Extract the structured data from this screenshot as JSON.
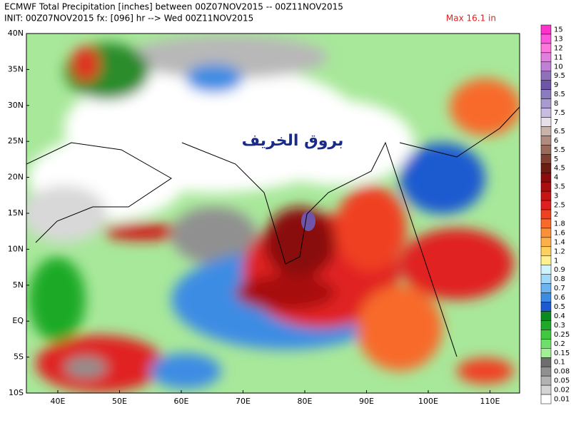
{
  "header": {
    "title_line1": "ECMWF Total Precipitation [inches] between 00Z07NOV2015 -- 00Z11NOV2015",
    "title_line2": "INIT: 00Z07NOV2015 fx: [096] hr --> Wed 00Z11NOV2015",
    "max": "Max 16.1 in"
  },
  "map": {
    "lat_labels": [
      "40N",
      "35N",
      "30N",
      "25N",
      "20N",
      "15N",
      "10N",
      "5N",
      "EQ",
      "5S",
      "10S"
    ],
    "lon_labels": [
      "40E",
      "50E",
      "60E",
      "70E",
      "80E",
      "90E",
      "100E",
      "110E"
    ],
    "watermark": "بروق الخريف"
  },
  "colorbar": [
    {
      "label": "15",
      "color": "#ff33cc"
    },
    {
      "label": "13",
      "color": "#ff55dd"
    },
    {
      "label": "12",
      "color": "#ff77dd"
    },
    {
      "label": "11",
      "color": "#e07fe0"
    },
    {
      "label": "10",
      "color": "#c080d8"
    },
    {
      "label": "9.5",
      "color": "#9070b8"
    },
    {
      "label": "9",
      "color": "#6e55a8"
    },
    {
      "label": "8.5",
      "color": "#8b7cc0"
    },
    {
      "label": "8",
      "color": "#a99ad0"
    },
    {
      "label": "7.5",
      "color": "#c8bde0"
    },
    {
      "label": "7",
      "color": "#e8e0e8"
    },
    {
      "label": "6.5",
      "color": "#c9b3ab"
    },
    {
      "label": "6",
      "color": "#b08b80"
    },
    {
      "label": "5.5",
      "color": "#9a6a5c"
    },
    {
      "label": "5",
      "color": "#7d4032"
    },
    {
      "label": "4.5",
      "color": "#6b1f14"
    },
    {
      "label": "4",
      "color": "#8a0c0c"
    },
    {
      "label": "3.5",
      "color": "#a81010"
    },
    {
      "label": "3",
      "color": "#c81414"
    },
    {
      "label": "2.5",
      "color": "#e02020"
    },
    {
      "label": "2",
      "color": "#f04020"
    },
    {
      "label": "1.8",
      "color": "#f86a2a"
    },
    {
      "label": "1.6",
      "color": "#fc9038"
    },
    {
      "label": "1.4",
      "color": "#fdb04a"
    },
    {
      "label": "1.2",
      "color": "#fed060"
    },
    {
      "label": "1",
      "color": "#fff090"
    },
    {
      "label": "0.9",
      "color": "#d0f4ff"
    },
    {
      "label": "0.8",
      "color": "#a0d8f8"
    },
    {
      "label": "0.7",
      "color": "#6cb4f0"
    },
    {
      "label": "0.6",
      "color": "#3c8ce4"
    },
    {
      "label": "0.5",
      "color": "#1c5ad0"
    },
    {
      "label": "0.4",
      "color": "#0a8a20"
    },
    {
      "label": "0.3",
      "color": "#1eaa28"
    },
    {
      "label": "0.25",
      "color": "#40c840"
    },
    {
      "label": "0.2",
      "color": "#6ee06a"
    },
    {
      "label": "0.15",
      "color": "#a2f096"
    },
    {
      "label": "0.1",
      "color": "#6e6e6e"
    },
    {
      "label": "0.08",
      "color": "#909090"
    },
    {
      "label": "0.05",
      "color": "#b2b2b2"
    },
    {
      "label": "0.02",
      "color": "#d4d4d4"
    },
    {
      "label": "0.01",
      "color": "#ffffff"
    }
  ]
}
